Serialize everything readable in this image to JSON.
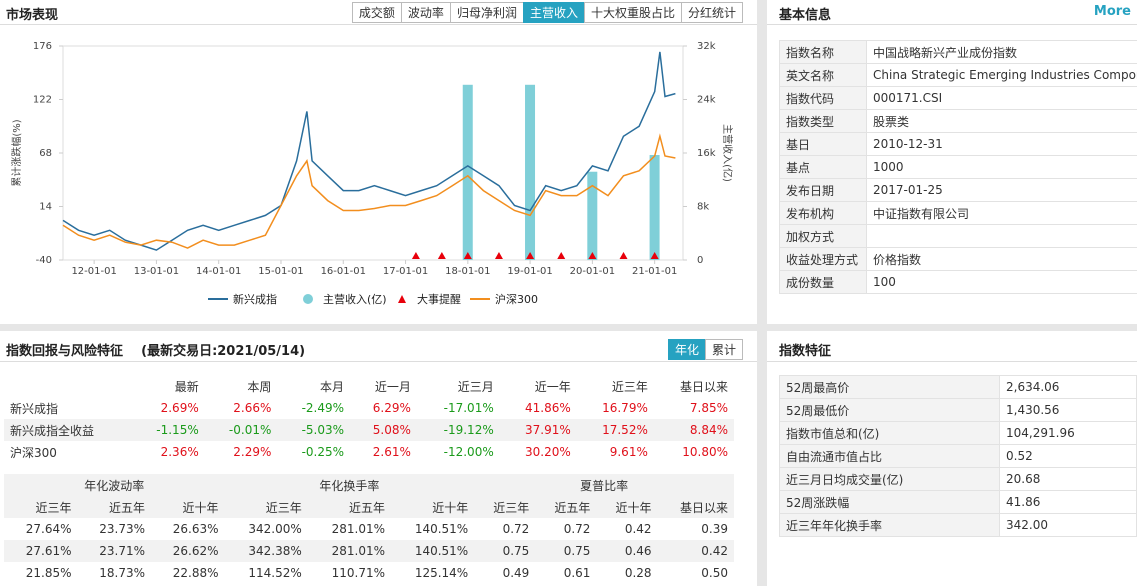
{
  "header": {
    "title": "市场表现",
    "tabs": {
      "items": [
        "成交额",
        "波动率",
        "归母净利润",
        "主营收入",
        "十大权重股占比",
        "分红统计"
      ],
      "active": 3
    }
  },
  "chart_data": {
    "type": "combo",
    "x": [
      "11-07-01",
      "11-10-01",
      "12-01-01",
      "12-04-01",
      "12-07-01",
      "12-10-01",
      "13-01-01",
      "13-04-01",
      "13-07-01",
      "13-10-01",
      "14-01-01",
      "14-04-01",
      "14-07-01",
      "14-10-01",
      "15-01-01",
      "15-04-01",
      "15-06-01",
      "15-07-01",
      "15-10-01",
      "16-01-01",
      "16-04-01",
      "16-07-01",
      "16-10-01",
      "17-01-01",
      "17-04-01",
      "17-07-01",
      "17-10-01",
      "18-01-01",
      "18-04-01",
      "18-07-01",
      "18-10-01",
      "19-01-01",
      "19-04-01",
      "19-07-01",
      "19-10-01",
      "20-01-01",
      "20-04-01",
      "20-07-01",
      "20-10-01",
      "21-01-01",
      "21-02-01",
      "21-03-01",
      "21-05-01"
    ],
    "xlim": [
      "11-07-01",
      "21-06-15"
    ],
    "xticks": [
      "12-01-01",
      "13-01-01",
      "14-01-01",
      "15-01-01",
      "16-01-01",
      "17-01-01",
      "18-01-01",
      "19-01-01",
      "20-01-01",
      "21-01-01"
    ],
    "ylim": [
      -40,
      176
    ],
    "yticks": [
      -40,
      14,
      68,
      122,
      176
    ],
    "y2lim": [
      0,
      32000
    ],
    "y2ticks": [
      0,
      {
        "value": 8000,
        "label": "8k"
      },
      {
        "value": 16000,
        "label": "16k"
      },
      {
        "value": 24000,
        "label": "24k"
      },
      {
        "value": 32000,
        "label": "32k"
      }
    ],
    "ylabel": "累计涨跌幅(%)",
    "y2label": "主营收入(亿)",
    "series": [
      {
        "name": "新兴成指",
        "type": "line",
        "color": "#2a6e9c",
        "values": [
          0,
          -10,
          -15,
          -10,
          -20,
          -25,
          -30,
          -20,
          -10,
          -5,
          -10,
          -5,
          0,
          5,
          15,
          60,
          110,
          60,
          45,
          30,
          30,
          35,
          30,
          25,
          30,
          35,
          45,
          55,
          45,
          35,
          15,
          10,
          35,
          30,
          35,
          55,
          50,
          85,
          95,
          130,
          170,
          125,
          128
        ]
      },
      {
        "name": "主营收入(亿)",
        "type": "bar",
        "axis": "y2",
        "color": "#7fcfd8",
        "x": [
          "17-12-31",
          "18-12-31",
          "19-12-31",
          "20-12-31"
        ],
        "values": [
          26200,
          26200,
          13200,
          15700
        ]
      },
      {
        "name": "大事提醒",
        "type": "marker",
        "color": "#e8000b",
        "x": [
          "17-03-01",
          "17-08-01",
          "18-01-01",
          "18-07-01",
          "19-01-01",
          "19-07-01",
          "20-01-01",
          "20-07-01",
          "21-01-01"
        ]
      },
      {
        "name": "沪深300",
        "type": "line",
        "color": "#f28e1e",
        "values": [
          -5,
          -15,
          -20,
          -15,
          -22,
          -25,
          -20,
          -22,
          -28,
          -20,
          -25,
          -25,
          -20,
          -15,
          15,
          45,
          60,
          35,
          20,
          10,
          10,
          12,
          15,
          15,
          20,
          25,
          35,
          45,
          30,
          20,
          10,
          5,
          30,
          25,
          25,
          35,
          25,
          45,
          50,
          65,
          85,
          65,
          63
        ]
      }
    ]
  },
  "basic": {
    "title": "基本信息",
    "more": "More",
    "rows": [
      [
        "指数名称",
        "中国战略新兴产业成份指数"
      ],
      [
        "英文名称",
        "China Strategic Emerging Industries Compon"
      ],
      [
        "指数代码",
        "000171.CSI"
      ],
      [
        "指数类型",
        "股票类"
      ],
      [
        "基日",
        "2010-12-31"
      ],
      [
        "基点",
        "1000"
      ],
      [
        "发布日期",
        "2017-01-25"
      ],
      [
        "发布机构",
        "中证指数有限公司"
      ],
      [
        "加权方式",
        ""
      ],
      [
        "收益处理方式",
        "价格指数"
      ],
      [
        "成份数量",
        "100"
      ]
    ]
  },
  "returns": {
    "title": "指数回报与风险特征",
    "subtitle": "(最新交易日:2021/05/14)",
    "tabs": {
      "items": [
        "年化",
        "累计"
      ],
      "active": 0
    },
    "header": [
      "最新",
      "本周",
      "本月",
      "近一月",
      "近三月",
      "近一年",
      "近三年",
      "基日以来"
    ],
    "rows": [
      [
        "新兴成指",
        "2.69%",
        "2.66%",
        "-2.49%",
        "6.29%",
        "-17.01%",
        "41.86%",
        "16.79%",
        "7.85%"
      ],
      [
        "新兴成指全收益",
        "-1.15%",
        "-0.01%",
        "-5.03%",
        "5.08%",
        "-19.12%",
        "37.91%",
        "17.52%",
        "8.84%"
      ],
      [
        "沪深300",
        "2.36%",
        "2.29%",
        "-0.25%",
        "2.61%",
        "-12.00%",
        "30.20%",
        "9.61%",
        "10.80%"
      ]
    ],
    "risk_groups": [
      "年化波动率",
      "年化换手率",
      "夏普比率"
    ],
    "risk_header": [
      "近三年",
      "近五年",
      "近十年",
      "近三年",
      "近五年",
      "近十年",
      "近三年",
      "近五年",
      "近十年",
      "基日以来"
    ],
    "risk_rows": [
      [
        "27.64%",
        "23.73%",
        "26.63%",
        "342.00%",
        "281.01%",
        "140.51%",
        "0.72",
        "0.72",
        "0.42",
        "0.39"
      ],
      [
        "27.61%",
        "23.71%",
        "26.62%",
        "342.38%",
        "281.01%",
        "140.51%",
        "0.75",
        "0.75",
        "0.46",
        "0.42"
      ],
      [
        "21.85%",
        "18.73%",
        "22.88%",
        "114.52%",
        "110.71%",
        "125.14%",
        "0.49",
        "0.61",
        "0.28",
        "0.50"
      ]
    ]
  },
  "features": {
    "title": "指数特征",
    "rows": [
      [
        "52周最高价",
        "2,634.06"
      ],
      [
        "52周最低价",
        "1,430.56"
      ],
      [
        "指数市值总和(亿)",
        "104,291.96"
      ],
      [
        "自由流通市值占比",
        "0.52"
      ],
      [
        "近三月日均成交量(亿)",
        "20.68"
      ],
      [
        "52周涨跌幅",
        "41.86"
      ],
      [
        "近三年年化换手率",
        "342.00"
      ]
    ]
  }
}
